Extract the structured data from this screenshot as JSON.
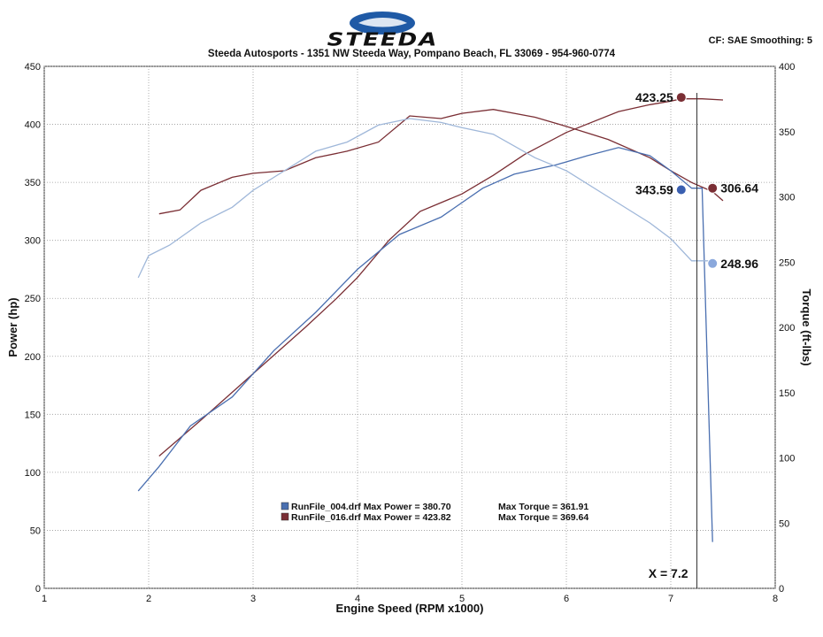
{
  "header": {
    "brand": "STEEDA",
    "address_line": "Steeda Autosports - 1351 NW Steeda Way, Pompano Beach, FL 33069 - 954-960-0774",
    "settings": "CF: SAE  Smoothing: 5"
  },
  "colors": {
    "run004": "#4a6fb0",
    "run004_light": "#9fb7d9",
    "run016": "#7a2e34",
    "run016_light": "#a9c2cf",
    "logo_blue": "#1f5aa6"
  },
  "chart_data": {
    "type": "line",
    "xlabel": "Engine Speed (RPM x1000)",
    "ylabel": "Power (hp)",
    "y2label": "Torque (ft-lbs)",
    "xlim": [
      1,
      8
    ],
    "ylim": [
      0,
      450
    ],
    "y2lim": [
      0,
      400
    ],
    "x_ticks": [
      "1",
      "2",
      "3",
      "4",
      "5",
      "6",
      "7",
      "8"
    ],
    "y_ticks": [
      "0",
      "50",
      "100",
      "150",
      "200",
      "250",
      "300",
      "350",
      "400",
      "450"
    ],
    "y2_ticks": [
      "0",
      "50",
      "100",
      "150",
      "200",
      "250",
      "300",
      "350",
      "400"
    ],
    "grid": true,
    "series": [
      {
        "name": "RunFile_016.drf",
        "quantity": "power",
        "axis": "left",
        "color": "#7a2e34",
        "x": [
          2.1,
          2.5,
          3.0,
          3.5,
          3.8,
          4.0,
          4.3,
          4.6,
          5.0,
          5.3,
          5.6,
          6.0,
          6.5,
          6.8,
          7.0,
          7.1,
          7.3,
          7.5
        ],
        "y": [
          114,
          145,
          185,
          225,
          250,
          268,
          300,
          325,
          340,
          356,
          374,
          393,
          411,
          417,
          420,
          422,
          422,
          421
        ]
      },
      {
        "name": "RunFile_016.drf",
        "quantity": "torque",
        "axis": "right",
        "color": "#7a2e34",
        "x": [
          2.1,
          2.3,
          2.5,
          2.8,
          3.0,
          3.3,
          3.6,
          3.9,
          4.2,
          4.5,
          4.8,
          5.0,
          5.3,
          5.7,
          6.0,
          6.4,
          6.8,
          7.0,
          7.2,
          7.4,
          7.5
        ],
        "y": [
          287,
          290,
          305,
          315,
          318,
          320,
          330,
          335,
          342,
          362,
          360,
          364,
          367,
          361,
          354,
          344,
          330,
          320,
          311,
          304,
          297
        ]
      },
      {
        "name": "RunFile_004.drf",
        "quantity": "power",
        "axis": "left",
        "color": "#4a6fb0",
        "x": [
          1.9,
          2.1,
          2.4,
          2.8,
          3.2,
          3.6,
          4.0,
          4.4,
          4.8,
          5.2,
          5.5,
          5.9,
          6.2,
          6.5,
          6.8,
          7.0,
          7.2,
          7.3,
          7.4
        ],
        "y": [
          84,
          105,
          140,
          165,
          205,
          238,
          275,
          305,
          320,
          345,
          357,
          365,
          373,
          380,
          373,
          360,
          345,
          345,
          40
        ]
      },
      {
        "name": "RunFile_004.drf",
        "quantity": "torque",
        "axis": "right",
        "color": "#9fb7d9",
        "x": [
          1.9,
          2.0,
          2.2,
          2.5,
          2.8,
          3.0,
          3.3,
          3.6,
          3.9,
          4.2,
          4.5,
          4.8,
          5.0,
          5.3,
          5.7,
          6.0,
          6.4,
          6.8,
          7.0,
          7.2,
          7.4
        ],
        "y": [
          238,
          255,
          263,
          280,
          292,
          305,
          320,
          335,
          342,
          355,
          360,
          357,
          353,
          348,
          330,
          320,
          300,
          280,
          268,
          251,
          251
        ]
      }
    ],
    "callouts": [
      {
        "label": "423.25",
        "x": 7.1,
        "y": 423.25,
        "axis": "left",
        "color": "#7a2e34"
      },
      {
        "label": "343.59",
        "x": 7.1,
        "y": 343.59,
        "axis": "left",
        "color": "#3a5fb0"
      },
      {
        "label": "306.64",
        "x": 7.4,
        "y": 306.64,
        "axis": "right",
        "color": "#7a2e34"
      },
      {
        "label": "248.96",
        "x": 7.4,
        "y": 248.96,
        "axis": "right",
        "color": "#8aa8dc"
      }
    ],
    "cursor": {
      "label": "X = 7.2",
      "x": 7.25
    },
    "legend": [
      {
        "run": "RunFile_004.drf",
        "power": "Max Power = 380.70",
        "torque": "Max Torque = 361.91",
        "color": "#4a6fb0"
      },
      {
        "run": "RunFile_016.drf",
        "power": "Max Power = 423.82",
        "torque": "Max Torque = 369.64",
        "color": "#7a2e34"
      }
    ]
  }
}
